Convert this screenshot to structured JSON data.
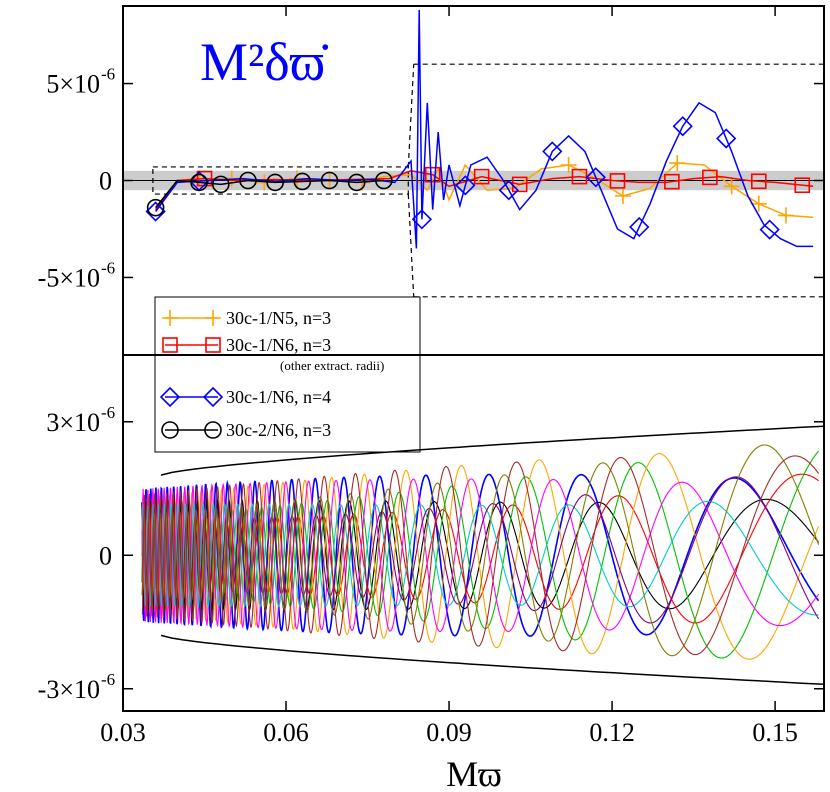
{
  "chart_data": [
    {
      "panel": "top",
      "type": "line",
      "title": "M²δϖ̇",
      "title_color": "#0000ff",
      "xlabel": "",
      "ylabel": "",
      "xlim": [
        0.03,
        0.159
      ],
      "ylim": [
        -9e-06,
        9e-06
      ],
      "y_ticks": [
        {
          "value": 5e-06,
          "mant": "5×10",
          "exp": "-6"
        },
        {
          "value": 0,
          "mant": "0",
          "exp": ""
        },
        {
          "value": -5e-06,
          "mant": "-5×10",
          "exp": "-6"
        }
      ],
      "grey_band": {
        "y": [
          -5e-07,
          5e-07
        ],
        "color": "#cccccc"
      },
      "zoom_box": {
        "x": [
          0.0355,
          0.0825
        ],
        "y": [
          -7e-07,
          7e-07
        ]
      },
      "zoom_target": {
        "x": [
          0.0835,
          0.159
        ],
        "y": [
          -6e-06,
          6e-06
        ]
      },
      "series": [
        {
          "name": "30c-1/N5, n=3",
          "color": "#ffa500",
          "marker": "plus",
          "x": [
            0.036,
            0.04,
            0.044,
            0.05,
            0.056,
            0.062,
            0.068,
            0.074,
            0.078,
            0.083,
            0.086,
            0.088,
            0.09,
            0.093,
            0.097,
            0.102,
            0.107,
            0.112,
            0.117,
            0.122,
            0.127,
            0.132,
            0.137,
            0.142,
            0.147,
            0.152,
            0.157
          ],
          "y": [
            -1.5e-06,
            0.0,
            1e-07,
            1e-07,
            -1e-07,
            1e-07,
            0.0,
            -1e-07,
            2e-07,
            3e-07,
            -5e-07,
            6e-07,
            -1e-06,
            8e-07,
            -5e-07,
            -4e-07,
            6e-07,
            8e-07,
            1e-07,
            -8e-07,
            -4e-07,
            9e-07,
            8e-07,
            -3e-07,
            -1.2e-06,
            -1.8e-06,
            -1.9e-06
          ],
          "marker_x": [
            0.044,
            0.05,
            0.056,
            0.062,
            0.068,
            0.074,
            0.112,
            0.122,
            0.132,
            0.142,
            0.147,
            0.152
          ]
        },
        {
          "name": "30c-1/N6, n=3",
          "note": "(other extract. radii)",
          "color": "#ff0000",
          "marker": "square",
          "x": [
            0.036,
            0.04,
            0.045,
            0.051,
            0.058,
            0.065,
            0.072,
            0.079,
            0.083,
            0.087,
            0.09,
            0.096,
            0.103,
            0.109,
            0.114,
            0.12,
            0.125,
            0.13,
            0.135,
            0.14,
            0.145,
            0.15,
            0.157
          ],
          "y": [
            -1.5e-06,
            0.0,
            1e-07,
            0.0,
            5e-08,
            0.0,
            5e-08,
            1e-07,
            5e-07,
            3e-07,
            -3e-07,
            2e-07,
            -2e-07,
            1e-07,
            2e-07,
            0.0,
            -1e-07,
            -1e-07,
            1e-07,
            2e-07,
            0.0,
            -1e-07,
            -3e-07
          ],
          "marker_x": [
            0.045,
            0.087,
            0.096,
            0.103,
            0.114,
            0.121,
            0.131,
            0.138,
            0.147,
            0.155
          ]
        },
        {
          "name": "30c-1/N6, n=4",
          "color": "#0000ff",
          "marker": "diamond",
          "x": [
            0.036,
            0.04,
            0.046,
            0.052,
            0.058,
            0.064,
            0.07,
            0.076,
            0.08,
            0.083,
            0.084,
            0.0845,
            0.085,
            0.086,
            0.087,
            0.088,
            0.089,
            0.09,
            0.092,
            0.094,
            0.097,
            0.1,
            0.103,
            0.106,
            0.109,
            0.112,
            0.115,
            0.118,
            0.121,
            0.124,
            0.127,
            0.13,
            0.133,
            0.136,
            0.139,
            0.142,
            0.145,
            0.148,
            0.151,
            0.154,
            0.157
          ],
          "y": [
            -1.6e-06,
            -1e-07,
            0.0,
            1e-07,
            -5e-08,
            1e-07,
            0.0,
            5e-08,
            -1e-07,
            1e-06,
            -3.5e-06,
            8.8e-06,
            -2e-06,
            4e-06,
            -1.5e-06,
            2.5e-06,
            -1e-06,
            8e-07,
            -1.3e-06,
            8e-07,
            1.2e-06,
            0.0,
            -1.5e-06,
            -5e-07,
            1.5e-06,
            2.3e-06,
            1.5e-06,
            -5e-07,
            -2.5e-06,
            -3e-06,
            -1.2e-06,
            1e-06,
            2.8e-06,
            4e-06,
            3.5e-06,
            1.5e-06,
            -8e-07,
            -2.3e-06,
            -3e-06,
            -3.4e-06,
            -3.4e-06
          ],
          "marker_x": [
            0.036,
            0.044,
            0.085,
            0.093,
            0.101,
            0.109,
            0.117,
            0.125,
            0.133,
            0.141,
            0.149
          ]
        },
        {
          "name": "30c-2/N6, n=3",
          "color": "#000000",
          "marker": "circle",
          "x": [
            0.036,
            0.04,
            0.044,
            0.048,
            0.053,
            0.058,
            0.063,
            0.068,
            0.073,
            0.078
          ],
          "y": [
            -1.4e-06,
            0.0,
            -1e-07,
            -2e-07,
            0.0,
            -1e-07,
            -5e-08,
            0.0,
            -1e-07,
            0.0
          ],
          "marker_x": [
            0.036,
            0.044,
            0.048,
            0.053,
            0.058,
            0.063,
            0.068,
            0.073,
            0.078
          ]
        }
      ],
      "legend": {
        "placement": "lower-left"
      }
    },
    {
      "panel": "bottom",
      "type": "line",
      "title": "",
      "xlabel": "Mϖ",
      "ylabel": "",
      "xlim": [
        0.03,
        0.159
      ],
      "ylim": [
        -3.5e-06,
        4.5e-06
      ],
      "x_ticks": [
        "0.03",
        "0.06",
        "0.09",
        "0.12",
        "0.15"
      ],
      "x_tick_values": [
        0.03,
        0.06,
        0.09,
        0.12,
        0.15
      ],
      "y_ticks": [
        {
          "value": 3e-06,
          "mant": "3×10",
          "exp": "-6"
        },
        {
          "value": 0,
          "mant": "0",
          "exp": ""
        },
        {
          "value": -3e-06,
          "mant": "-3×10",
          "exp": "-6"
        }
      ],
      "envelope": {
        "x": [
          0.037,
          0.159
        ],
        "upper": [
          1.8e-06,
          2.9e-06
        ],
        "lower": [
          -1.8e-06,
          -2.9e-06
        ],
        "color": "#000000"
      },
      "oscillation": {
        "x_start": 0.0335,
        "x_end": 0.158,
        "amplitude_start": 1.5e-06,
        "amplitude_end": 2.6e-06,
        "colors": [
          "#0000ff",
          "#000000",
          "#ff0000",
          "#00c000",
          "#ffa500",
          "#ff00ff",
          "#00cccc",
          "#800080",
          "#808000",
          "#a52a2a"
        ]
      }
    }
  ]
}
